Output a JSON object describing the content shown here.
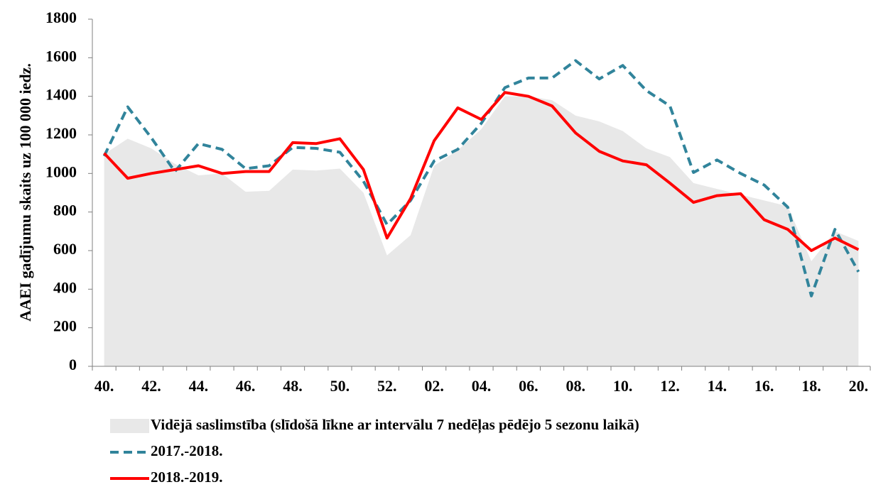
{
  "chart_data": {
    "type": "line",
    "y_label": "AAEI gadījumu skaits uz 100 000 iedz.",
    "categories": [
      "40.",
      null,
      "42.",
      null,
      "44.",
      null,
      "46.",
      null,
      "48.",
      null,
      "50.",
      null,
      "52.",
      null,
      "02.",
      null,
      "04.",
      null,
      "06.",
      null,
      "08.",
      null,
      "10.",
      null,
      "12.",
      null,
      "14.",
      null,
      "16.",
      null,
      "18.",
      null,
      "20."
    ],
    "ylim": [
      0,
      1800
    ],
    "yticks": [
      0,
      200,
      400,
      600,
      800,
      1000,
      1200,
      1400,
      1600,
      1800
    ],
    "series": [
      {
        "name": "Vidējā saslimstība (slīdošā līkne ar intervālu 7 nedēļas pēdējo 5 sezonu laikā)",
        "color": "#e8e8e8",
        "style": "area",
        "values": [
          1100,
          1180,
          1130,
          1050,
          990,
          1000,
          905,
          910,
          1020,
          1015,
          1025,
          900,
          575,
          680,
          1040,
          1120,
          1230,
          1400,
          1400,
          1380,
          1300,
          1270,
          1220,
          1130,
          1085,
          950,
          920,
          890,
          860,
          830,
          545,
          700,
          650
        ]
      },
      {
        "name": "2017.-2018.",
        "color": "#31849b",
        "style": "dashed",
        "values": [
          1090,
          1345,
          1185,
          1010,
          1155,
          1125,
          1025,
          1040,
          1135,
          1130,
          1110,
          960,
          735,
          860,
          1065,
          1125,
          1260,
          1445,
          1495,
          1495,
          1585,
          1490,
          1560,
          1430,
          1350,
          1005,
          1070,
          1000,
          940,
          825,
          365,
          710,
          490
        ]
      },
      {
        "name": "2018.-2019.",
        "color": "#ff0000",
        "style": "solid",
        "values": [
          1105,
          975,
          1000,
          1020,
          1040,
          1000,
          1010,
          1010,
          1160,
          1155,
          1180,
          1020,
          665,
          870,
          1170,
          1340,
          1280,
          1420,
          1400,
          1350,
          1210,
          1115,
          1065,
          1045,
          950,
          850,
          885,
          895,
          760,
          710,
          600,
          665,
          605
        ]
      }
    ]
  }
}
